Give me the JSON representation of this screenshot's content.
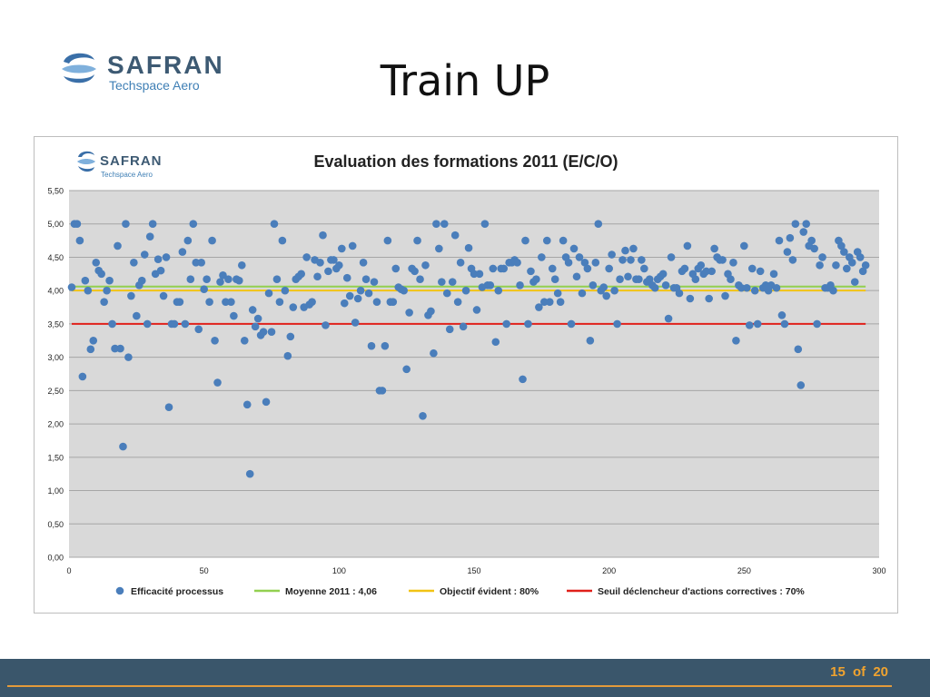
{
  "header": {
    "logo_brand": "SAFRAN",
    "logo_sub": "Techspace Aero",
    "title": "Train UP"
  },
  "footer": {
    "page": "15",
    "of_label": "of",
    "total": "20"
  },
  "colors": {
    "scatter": "#4a7ebb",
    "moyenne": "#92d050",
    "objectif": "#f2c314",
    "seuil": "#e0201a",
    "plot_bg": "#d9d9d9",
    "footer": "#3a566b",
    "accent": "#f0a32f"
  },
  "chart_data": {
    "type": "scatter",
    "title": "Evaluation des formations 2011 (E/C/O)",
    "logo_brand": "SAFRAN",
    "logo_sub": "Techspace Aero",
    "xlim": [
      0,
      300
    ],
    "ylim": [
      0,
      5.5
    ],
    "x_ticks": [
      "0",
      "50",
      "100",
      "150",
      "200",
      "250",
      "300"
    ],
    "y_ticks": [
      "0,00",
      "0,50",
      "1,00",
      "1,50",
      "2,00",
      "2,50",
      "3,00",
      "3,50",
      "4,00",
      "4,50",
      "5,00",
      "5,50"
    ],
    "grid": "horizontal",
    "legend_position": "bottom",
    "series": [
      {
        "name": "Efficacité processus",
        "kind": "scatter",
        "points": [
          [
            1,
            4.05
          ],
          [
            2,
            5.0
          ],
          [
            3,
            5.0
          ],
          [
            4,
            4.75
          ],
          [
            5,
            2.71
          ],
          [
            6,
            4.15
          ],
          [
            7,
            4.0
          ],
          [
            8,
            3.12
          ],
          [
            9,
            3.25
          ],
          [
            10,
            4.42
          ],
          [
            11,
            4.3
          ],
          [
            12,
            4.25
          ],
          [
            13,
            3.83
          ],
          [
            14,
            4.0
          ],
          [
            15,
            4.15
          ],
          [
            16,
            3.5
          ],
          [
            17,
            3.13
          ],
          [
            18,
            4.67
          ],
          [
            19,
            3.13
          ],
          [
            20,
            1.66
          ],
          [
            21,
            5.0
          ],
          [
            22,
            3.0
          ],
          [
            23,
            3.92
          ],
          [
            24,
            4.42
          ],
          [
            25,
            3.62
          ],
          [
            26,
            4.08
          ],
          [
            27,
            4.15
          ],
          [
            28,
            4.54
          ],
          [
            29,
            3.5
          ],
          [
            30,
            4.81
          ],
          [
            31,
            5.0
          ],
          [
            32,
            4.25
          ],
          [
            33,
            4.47
          ],
          [
            34,
            4.3
          ],
          [
            35,
            3.92
          ],
          [
            36,
            4.5
          ],
          [
            37,
            2.25
          ],
          [
            38,
            3.5
          ],
          [
            39,
            3.5
          ],
          [
            40,
            3.83
          ],
          [
            41,
            3.83
          ],
          [
            42,
            4.58
          ],
          [
            43,
            3.5
          ],
          [
            44,
            4.75
          ],
          [
            45,
            4.17
          ],
          [
            46,
            5.0
          ],
          [
            47,
            4.42
          ],
          [
            48,
            3.42
          ],
          [
            49,
            4.42
          ],
          [
            50,
            4.02
          ],
          [
            51,
            4.17
          ],
          [
            52,
            3.83
          ],
          [
            53,
            4.75
          ],
          [
            54,
            3.25
          ],
          [
            55,
            2.62
          ],
          [
            56,
            4.13
          ],
          [
            57,
            4.23
          ],
          [
            58,
            3.83
          ],
          [
            59,
            4.17
          ],
          [
            60,
            3.83
          ],
          [
            61,
            3.62
          ],
          [
            62,
            4.17
          ],
          [
            63,
            4.15
          ],
          [
            64,
            4.38
          ],
          [
            65,
            3.25
          ],
          [
            66,
            2.29
          ],
          [
            67,
            1.25
          ],
          [
            68,
            3.71
          ],
          [
            69,
            3.46
          ],
          [
            70,
            3.58
          ],
          [
            71,
            3.33
          ],
          [
            72,
            3.38
          ],
          [
            73,
            2.33
          ],
          [
            74,
            3.96
          ],
          [
            75,
            3.38
          ],
          [
            76,
            5.0
          ],
          [
            77,
            4.17
          ],
          [
            78,
            3.83
          ],
          [
            79,
            4.75
          ],
          [
            80,
            4.0
          ],
          [
            81,
            3.02
          ],
          [
            82,
            3.31
          ],
          [
            83,
            3.75
          ],
          [
            84,
            4.17
          ],
          [
            85,
            4.21
          ],
          [
            86,
            4.25
          ],
          [
            87,
            3.75
          ],
          [
            88,
            4.5
          ],
          [
            89,
            3.79
          ],
          [
            90,
            3.83
          ],
          [
            91,
            4.46
          ],
          [
            92,
            4.21
          ],
          [
            93,
            4.42
          ],
          [
            94,
            4.83
          ],
          [
            95,
            3.48
          ],
          [
            96,
            4.29
          ],
          [
            97,
            4.46
          ],
          [
            98,
            4.46
          ],
          [
            99,
            4.33
          ],
          [
            100,
            4.38
          ],
          [
            101,
            4.63
          ],
          [
            102,
            3.81
          ],
          [
            103,
            4.19
          ],
          [
            104,
            3.92
          ],
          [
            105,
            4.67
          ],
          [
            106,
            3.52
          ],
          [
            107,
            3.88
          ],
          [
            108,
            4.0
          ],
          [
            109,
            4.42
          ],
          [
            110,
            4.17
          ],
          [
            111,
            3.96
          ],
          [
            112,
            3.17
          ],
          [
            113,
            4.13
          ],
          [
            114,
            3.83
          ],
          [
            115,
            2.5
          ],
          [
            116,
            2.5
          ],
          [
            117,
            3.17
          ],
          [
            118,
            4.75
          ],
          [
            119,
            3.83
          ],
          [
            120,
            3.83
          ],
          [
            121,
            4.33
          ],
          [
            122,
            4.05
          ],
          [
            123,
            4.02
          ],
          [
            124,
            4.0
          ],
          [
            125,
            2.82
          ],
          [
            126,
            3.67
          ],
          [
            127,
            4.33
          ],
          [
            128,
            4.29
          ],
          [
            129,
            4.75
          ],
          [
            130,
            4.17
          ],
          [
            131,
            2.12
          ],
          [
            132,
            4.38
          ],
          [
            133,
            3.63
          ],
          [
            134,
            3.69
          ],
          [
            135,
            3.06
          ],
          [
            136,
            5.0
          ],
          [
            137,
            4.63
          ],
          [
            138,
            4.13
          ],
          [
            139,
            5.0
          ],
          [
            140,
            3.96
          ],
          [
            141,
            3.42
          ],
          [
            142,
            4.13
          ],
          [
            143,
            4.83
          ],
          [
            144,
            3.83
          ],
          [
            145,
            4.42
          ],
          [
            146,
            3.46
          ],
          [
            147,
            4.0
          ],
          [
            148,
            4.64
          ],
          [
            149,
            4.33
          ],
          [
            150,
            4.25
          ],
          [
            151,
            3.71
          ],
          [
            152,
            4.25
          ],
          [
            153,
            4.05
          ],
          [
            154,
            5.0
          ],
          [
            155,
            4.08
          ],
          [
            156,
            4.08
          ],
          [
            157,
            4.33
          ],
          [
            158,
            3.23
          ],
          [
            159,
            4.0
          ],
          [
            160,
            4.33
          ],
          [
            161,
            4.33
          ],
          [
            162,
            3.5
          ],
          [
            163,
            4.42
          ],
          [
            164,
            4.42
          ],
          [
            165,
            4.46
          ],
          [
            166,
            4.42
          ],
          [
            167,
            4.08
          ],
          [
            168,
            2.67
          ],
          [
            169,
            4.75
          ],
          [
            170,
            3.5
          ],
          [
            171,
            4.29
          ],
          [
            172,
            4.13
          ],
          [
            173,
            4.17
          ],
          [
            174,
            3.75
          ],
          [
            175,
            4.5
          ],
          [
            176,
            3.83
          ],
          [
            177,
            4.75
          ],
          [
            178,
            3.83
          ],
          [
            179,
            4.33
          ],
          [
            180,
            4.17
          ],
          [
            181,
            3.96
          ],
          [
            182,
            3.83
          ],
          [
            183,
            4.75
          ],
          [
            184,
            4.5
          ],
          [
            185,
            4.42
          ],
          [
            186,
            3.5
          ],
          [
            187,
            4.63
          ],
          [
            188,
            4.21
          ],
          [
            189,
            4.5
          ],
          [
            190,
            3.96
          ],
          [
            191,
            4.42
          ],
          [
            192,
            4.33
          ],
          [
            193,
            3.25
          ],
          [
            194,
            4.08
          ],
          [
            195,
            4.42
          ],
          [
            196,
            5.0
          ],
          [
            197,
            4.0
          ],
          [
            198,
            4.05
          ],
          [
            199,
            3.92
          ],
          [
            200,
            4.33
          ],
          [
            201,
            4.54
          ],
          [
            202,
            4.0
          ],
          [
            203,
            3.5
          ],
          [
            204,
            4.17
          ],
          [
            205,
            4.46
          ],
          [
            206,
            4.6
          ],
          [
            207,
            4.21
          ],
          [
            208,
            4.46
          ],
          [
            209,
            4.63
          ],
          [
            210,
            4.17
          ],
          [
            211,
            4.17
          ],
          [
            212,
            4.46
          ],
          [
            213,
            4.33
          ],
          [
            214,
            4.13
          ],
          [
            215,
            4.17
          ],
          [
            216,
            4.08
          ],
          [
            217,
            4.04
          ],
          [
            218,
            4.17
          ],
          [
            219,
            4.21
          ],
          [
            220,
            4.25
          ],
          [
            221,
            4.08
          ],
          [
            222,
            3.58
          ],
          [
            223,
            4.5
          ],
          [
            224,
            4.04
          ],
          [
            225,
            4.04
          ],
          [
            226,
            3.96
          ],
          [
            227,
            4.29
          ],
          [
            228,
            4.33
          ],
          [
            229,
            4.67
          ],
          [
            230,
            3.88
          ],
          [
            231,
            4.25
          ],
          [
            232,
            4.17
          ],
          [
            233,
            4.33
          ],
          [
            234,
            4.38
          ],
          [
            235,
            4.25
          ],
          [
            236,
            4.29
          ],
          [
            237,
            3.88
          ],
          [
            238,
            4.29
          ],
          [
            239,
            4.63
          ],
          [
            240,
            4.5
          ],
          [
            241,
            4.46
          ],
          [
            242,
            4.46
          ],
          [
            243,
            3.92
          ],
          [
            244,
            4.25
          ],
          [
            245,
            4.17
          ],
          [
            246,
            4.42
          ],
          [
            247,
            3.25
          ],
          [
            248,
            4.08
          ],
          [
            249,
            4.04
          ],
          [
            250,
            4.67
          ],
          [
            251,
            4.04
          ],
          [
            252,
            3.48
          ],
          [
            253,
            4.33
          ],
          [
            254,
            4.0
          ],
          [
            255,
            3.5
          ],
          [
            256,
            4.29
          ],
          [
            257,
            4.04
          ],
          [
            258,
            4.08
          ],
          [
            259,
            4.0
          ],
          [
            260,
            4.08
          ],
          [
            261,
            4.25
          ],
          [
            262,
            4.04
          ],
          [
            263,
            4.75
          ],
          [
            264,
            3.63
          ],
          [
            265,
            3.5
          ],
          [
            266,
            4.58
          ],
          [
            267,
            4.79
          ],
          [
            268,
            4.46
          ],
          [
            269,
            5.0
          ],
          [
            270,
            3.12
          ],
          [
            271,
            2.58
          ],
          [
            272,
            4.88
          ],
          [
            273,
            5.0
          ],
          [
            274,
            4.67
          ],
          [
            275,
            4.75
          ],
          [
            276,
            4.63
          ],
          [
            277,
            3.5
          ],
          [
            278,
            4.38
          ],
          [
            279,
            4.5
          ],
          [
            280,
            4.04
          ],
          [
            281,
            4.04
          ],
          [
            282,
            4.08
          ],
          [
            283,
            4.0
          ],
          [
            284,
            4.38
          ],
          [
            285,
            4.75
          ],
          [
            286,
            4.67
          ],
          [
            287,
            4.58
          ],
          [
            288,
            4.33
          ],
          [
            289,
            4.5
          ],
          [
            290,
            4.42
          ],
          [
            291,
            4.13
          ],
          [
            292,
            4.58
          ],
          [
            293,
            4.5
          ],
          [
            294,
            4.29
          ],
          [
            295,
            4.38
          ]
        ]
      },
      {
        "name": "Moyenne 2011 : 4,06",
        "kind": "hline",
        "value": 4.06
      },
      {
        "name": "Objectif évident : 80%",
        "kind": "hline",
        "value": 4.0
      },
      {
        "name": "Seuil déclencheur d'actions correctives : 70%",
        "kind": "hline",
        "value": 3.5
      }
    ]
  }
}
